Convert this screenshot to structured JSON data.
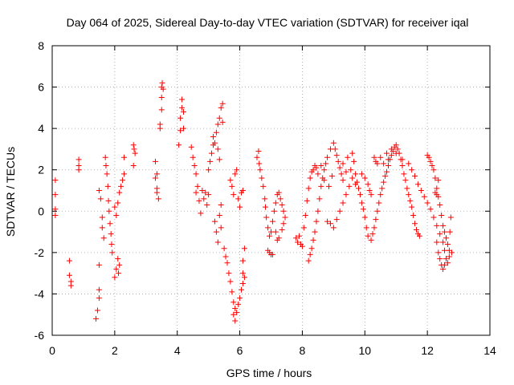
{
  "chart_data": {
    "type": "scatter",
    "title": "Day 064 of 2025, Sidereal Day-to-day VTEC variation (SDTVAR) for receiver iqal",
    "xlabel": "GPS time / hours",
    "ylabel": "SDTVAR / TECUs",
    "xlim": [
      0,
      14
    ],
    "ylim": [
      -6,
      8
    ],
    "xticks": [
      "0",
      "2",
      "4",
      "6",
      "8",
      "10",
      "12",
      "14"
    ],
    "yticks": [
      "-6",
      "-4",
      "-2",
      "0",
      "2",
      "4",
      "6",
      "8"
    ],
    "grid": true,
    "marker": "+",
    "color": "#ff0000",
    "series": [
      {
        "name": "SDTVAR",
        "points": [
          [
            0.1,
            1.5
          ],
          [
            0.1,
            0.8
          ],
          [
            0.1,
            0.1
          ],
          [
            0.1,
            -0.2
          ],
          [
            0.55,
            -2.4
          ],
          [
            0.55,
            -3.1
          ],
          [
            0.6,
            -3.4
          ],
          [
            0.6,
            -3.6
          ],
          [
            0.85,
            2.5
          ],
          [
            0.85,
            2.2
          ],
          [
            0.85,
            2.0
          ],
          [
            1.4,
            -5.2
          ],
          [
            1.45,
            -4.8
          ],
          [
            1.5,
            -4.2
          ],
          [
            1.5,
            -3.8
          ],
          [
            1.5,
            -2.6
          ],
          [
            1.5,
            1.0
          ],
          [
            1.55,
            0.6
          ],
          [
            1.6,
            -0.3
          ],
          [
            1.6,
            -0.8
          ],
          [
            1.65,
            -1.3
          ],
          [
            1.7,
            2.6
          ],
          [
            1.72,
            2.2
          ],
          [
            1.75,
            1.8
          ],
          [
            1.78,
            1.2
          ],
          [
            1.8,
            0.5
          ],
          [
            1.82,
            0.0
          ],
          [
            1.85,
            -0.6
          ],
          [
            1.88,
            -1.1
          ],
          [
            1.9,
            -1.6
          ],
          [
            1.92,
            -2.0
          ],
          [
            2.0,
            -3.2
          ],
          [
            2.05,
            -2.8
          ],
          [
            2.1,
            -2.3
          ],
          [
            2.12,
            -3.0
          ],
          [
            2.15,
            -2.6
          ],
          [
            2.0,
            0.2
          ],
          [
            2.05,
            -0.2
          ],
          [
            2.1,
            0.4
          ],
          [
            2.15,
            0.9
          ],
          [
            2.2,
            1.2
          ],
          [
            2.25,
            1.5
          ],
          [
            2.3,
            1.8
          ],
          [
            2.3,
            2.6
          ],
          [
            2.6,
            3.2
          ],
          [
            2.62,
            3.0
          ],
          [
            2.65,
            2.8
          ],
          [
            2.6,
            2.2
          ],
          [
            3.3,
            2.4
          ],
          [
            3.35,
            1.8
          ],
          [
            3.3,
            1.6
          ],
          [
            3.35,
            1.1
          ],
          [
            3.35,
            0.9
          ],
          [
            3.4,
            0.6
          ],
          [
            3.45,
            4.2
          ],
          [
            3.45,
            4.0
          ],
          [
            3.5,
            4.9
          ],
          [
            3.5,
            5.5
          ],
          [
            3.5,
            6.0
          ],
          [
            3.52,
            6.2
          ],
          [
            3.55,
            5.9
          ],
          [
            4.05,
            3.2
          ],
          [
            4.1,
            3.9
          ],
          [
            4.1,
            4.5
          ],
          [
            4.15,
            5.0
          ],
          [
            4.15,
            5.4
          ],
          [
            4.2,
            4.8
          ],
          [
            4.2,
            4.0
          ],
          [
            4.45,
            3.1
          ],
          [
            4.5,
            2.6
          ],
          [
            4.55,
            2.2
          ],
          [
            4.6,
            1.8
          ],
          [
            4.6,
            0.9
          ],
          [
            4.65,
            1.2
          ],
          [
            4.7,
            0.5
          ],
          [
            4.75,
            -0.1
          ],
          [
            4.8,
            1.0
          ],
          [
            4.85,
            0.6
          ],
          [
            4.9,
            0.9
          ],
          [
            4.95,
            0.3
          ],
          [
            5.0,
            0.8
          ],
          [
            5.0,
            2.0
          ],
          [
            5.05,
            2.4
          ],
          [
            5.1,
            2.8
          ],
          [
            5.15,
            3.2
          ],
          [
            5.15,
            3.6
          ],
          [
            5.2,
            3.3
          ],
          [
            5.25,
            3.8
          ],
          [
            5.3,
            4.2
          ],
          [
            5.3,
            3.0
          ],
          [
            5.35,
            2.5
          ],
          [
            5.35,
            4.5
          ],
          [
            5.4,
            5.0
          ],
          [
            5.45,
            5.2
          ],
          [
            5.45,
            4.3
          ],
          [
            5.2,
            -0.5
          ],
          [
            5.25,
            -1.0
          ],
          [
            5.3,
            -1.5
          ],
          [
            5.35,
            -0.2
          ],
          [
            5.4,
            0.3
          ],
          [
            5.4,
            -0.8
          ],
          [
            5.5,
            -1.8
          ],
          [
            5.55,
            -2.2
          ],
          [
            5.6,
            -2.5
          ],
          [
            5.65,
            -3.0
          ],
          [
            5.7,
            -3.4
          ],
          [
            5.75,
            -3.9
          ],
          [
            5.8,
            -4.4
          ],
          [
            5.8,
            -5.0
          ],
          [
            5.85,
            -5.3
          ],
          [
            5.85,
            -4.7
          ],
          [
            5.9,
            -4.9
          ],
          [
            5.95,
            -4.5
          ],
          [
            6.0,
            -4.2
          ],
          [
            6.05,
            -3.8
          ],
          [
            6.1,
            -3.5
          ],
          [
            6.1,
            -3.0
          ],
          [
            6.15,
            -3.2
          ],
          [
            6.1,
            -2.4
          ],
          [
            6.15,
            -1.8
          ],
          [
            5.7,
            1.5
          ],
          [
            5.75,
            1.2
          ],
          [
            5.8,
            0.8
          ],
          [
            5.85,
            1.8
          ],
          [
            5.9,
            2.0
          ],
          [
            5.95,
            0.6
          ],
          [
            6.0,
            0.2
          ],
          [
            6.05,
            0.9
          ],
          [
            6.1,
            1.0
          ],
          [
            6.55,
            2.6
          ],
          [
            6.6,
            2.9
          ],
          [
            6.62,
            2.3
          ],
          [
            6.65,
            2.0
          ],
          [
            6.7,
            1.6
          ],
          [
            6.75,
            1.2
          ],
          [
            6.8,
            0.6
          ],
          [
            6.82,
            0.2
          ],
          [
            6.85,
            -0.3
          ],
          [
            6.9,
            -0.8
          ],
          [
            6.95,
            -1.2
          ],
          [
            6.9,
            -1.9
          ],
          [
            6.95,
            -2.0
          ],
          [
            7.0,
            -2.1
          ],
          [
            7.05,
            -2.1
          ],
          [
            7.0,
            -1.0
          ],
          [
            7.05,
            -0.5
          ],
          [
            7.1,
            0.0
          ],
          [
            7.15,
            0.4
          ],
          [
            7.2,
            0.8
          ],
          [
            7.25,
            0.9
          ],
          [
            7.3,
            0.6
          ],
          [
            7.35,
            0.3
          ],
          [
            7.4,
            0.0
          ],
          [
            7.45,
            -0.3
          ],
          [
            7.4,
            -0.6
          ],
          [
            7.35,
            -0.9
          ],
          [
            7.25,
            -1.3
          ],
          [
            7.2,
            -1.4
          ],
          [
            7.15,
            -1.0
          ],
          [
            7.8,
            -1.3
          ],
          [
            7.85,
            -1.5
          ],
          [
            7.9,
            -1.2
          ],
          [
            7.95,
            -1.6
          ],
          [
            8.0,
            -1.7
          ],
          [
            8.05,
            -0.8
          ],
          [
            8.1,
            -0.2
          ],
          [
            8.15,
            0.5
          ],
          [
            8.2,
            1.1
          ],
          [
            8.25,
            1.6
          ],
          [
            8.3,
            1.9
          ],
          [
            8.35,
            2.0
          ],
          [
            8.4,
            2.2
          ],
          [
            8.45,
            2.1
          ],
          [
            8.5,
            1.8
          ],
          [
            8.2,
            -2.4
          ],
          [
            8.25,
            -2.1
          ],
          [
            8.3,
            -1.8
          ],
          [
            8.35,
            -1.4
          ],
          [
            8.4,
            -1.0
          ],
          [
            8.45,
            -0.5
          ],
          [
            8.5,
            0.0
          ],
          [
            8.55,
            0.6
          ],
          [
            8.6,
            1.2
          ],
          [
            8.65,
            1.6
          ],
          [
            8.7,
            2.0
          ],
          [
            8.75,
            2.3
          ],
          [
            8.8,
            2.6
          ],
          [
            8.9,
            3.0
          ],
          [
            9.0,
            3.3
          ],
          [
            9.05,
            3.0
          ],
          [
            9.1,
            2.7
          ],
          [
            9.15,
            2.4
          ],
          [
            9.2,
            2.1
          ],
          [
            9.25,
            1.8
          ],
          [
            9.3,
            1.5
          ],
          [
            8.8,
            -0.5
          ],
          [
            8.9,
            -0.6
          ],
          [
            9.0,
            -0.8
          ],
          [
            9.1,
            -0.4
          ],
          [
            9.2,
            0.0
          ],
          [
            9.3,
            0.4
          ],
          [
            9.4,
            0.8
          ],
          [
            9.5,
            1.2
          ],
          [
            9.55,
            2.0
          ],
          [
            9.6,
            2.8
          ],
          [
            9.65,
            2.4
          ],
          [
            9.7,
            1.8
          ],
          [
            9.75,
            1.4
          ],
          [
            9.8,
            1.1
          ],
          [
            9.85,
            0.8
          ],
          [
            9.9,
            0.4
          ],
          [
            9.95,
            0.1
          ],
          [
            10.0,
            -0.3
          ],
          [
            10.05,
            -0.8
          ],
          [
            10.1,
            -1.2
          ],
          [
            10.2,
            -1.4
          ],
          [
            10.25,
            -1.1
          ],
          [
            10.3,
            -0.8
          ],
          [
            10.35,
            -0.4
          ],
          [
            10.4,
            0.0
          ],
          [
            10.45,
            0.4
          ],
          [
            10.5,
            0.8
          ],
          [
            10.55,
            1.1
          ],
          [
            10.6,
            1.4
          ],
          [
            10.65,
            1.7
          ],
          [
            10.7,
            1.9
          ],
          [
            10.75,
            2.2
          ],
          [
            10.8,
            2.5
          ],
          [
            10.85,
            2.7
          ],
          [
            10.9,
            2.9
          ],
          [
            10.95,
            3.1
          ],
          [
            11.0,
            3.2
          ],
          [
            11.05,
            3.0
          ],
          [
            11.1,
            2.8
          ],
          [
            11.15,
            2.5
          ],
          [
            11.2,
            2.2
          ],
          [
            11.25,
            1.8
          ],
          [
            11.3,
            1.5
          ],
          [
            11.35,
            1.1
          ],
          [
            11.4,
            0.8
          ],
          [
            11.45,
            0.5
          ],
          [
            11.5,
            0.2
          ],
          [
            11.55,
            -0.2
          ],
          [
            11.6,
            -0.6
          ],
          [
            11.65,
            -0.9
          ],
          [
            11.7,
            -1.1
          ],
          [
            11.75,
            -1.2
          ],
          [
            10.3,
            2.6
          ],
          [
            10.35,
            2.4
          ],
          [
            10.4,
            2.3
          ],
          [
            10.5,
            2.6
          ],
          [
            10.6,
            2.3
          ],
          [
            10.7,
            2.8
          ],
          [
            10.75,
            2.5
          ],
          [
            10.85,
            3.0
          ],
          [
            11.0,
            2.8
          ],
          [
            11.2,
            2.5
          ],
          [
            11.4,
            2.3
          ],
          [
            11.5,
            2.0
          ],
          [
            11.6,
            1.7
          ],
          [
            11.7,
            1.3
          ],
          [
            11.8,
            1.0
          ],
          [
            11.9,
            0.7
          ],
          [
            12.0,
            0.4
          ],
          [
            12.1,
            0.1
          ],
          [
            12.2,
            -0.3
          ],
          [
            12.3,
            -0.7
          ],
          [
            12.4,
            -1.1
          ],
          [
            12.5,
            -1.5
          ],
          [
            12.55,
            -1.9
          ],
          [
            12.6,
            -2.3
          ],
          [
            12.65,
            -2.5
          ],
          [
            12.7,
            -2.2
          ],
          [
            12.0,
            2.7
          ],
          [
            12.05,
            2.6
          ],
          [
            12.1,
            2.4
          ],
          [
            12.15,
            2.2
          ],
          [
            12.2,
            2.0
          ],
          [
            12.25,
            1.6
          ],
          [
            12.3,
            1.1
          ],
          [
            12.35,
            0.7
          ],
          [
            12.4,
            0.3
          ],
          [
            12.45,
            -0.2
          ],
          [
            12.5,
            -0.7
          ],
          [
            12.55,
            -1.0
          ],
          [
            12.6,
            -1.3
          ],
          [
            12.65,
            -1.6
          ],
          [
            12.7,
            -1.9
          ],
          [
            12.72,
            -1.0
          ],
          [
            12.75,
            -0.3
          ],
          [
            12.78,
            -2.0
          ],
          [
            12.3,
            -1.5
          ],
          [
            12.35,
            -2.0
          ],
          [
            12.4,
            -2.3
          ],
          [
            12.45,
            -2.6
          ],
          [
            12.5,
            -2.8
          ],
          [
            12.55,
            -2.6
          ],
          [
            12.35,
            1.5
          ],
          [
            12.3,
            0.8
          ],
          [
            12.25,
            0.9
          ],
          [
            9.9,
            1.8
          ],
          [
            10.0,
            1.6
          ],
          [
            10.1,
            1.3
          ],
          [
            10.15,
            1.0
          ],
          [
            10.2,
            0.8
          ],
          [
            9.6,
            1.6
          ],
          [
            9.7,
            1.3
          ],
          [
            9.4,
            1.9
          ],
          [
            9.3,
            2.3
          ],
          [
            9.45,
            2.6
          ],
          [
            8.6,
            2.2
          ],
          [
            8.7,
            1.5
          ],
          [
            8.85,
            1.2
          ],
          [
            8.95,
            1.7
          ]
        ]
      }
    ]
  }
}
